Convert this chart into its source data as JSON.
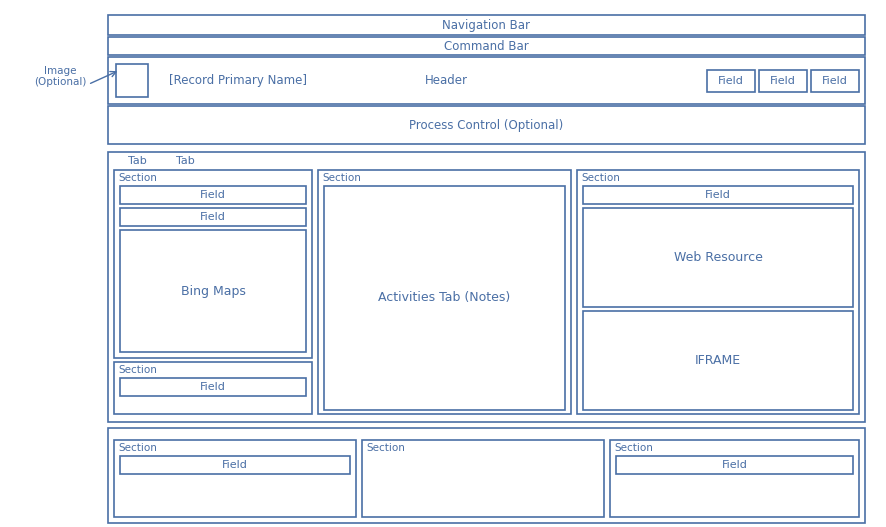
{
  "bg_color": "#ffffff",
  "bc": "#4a6fa5",
  "tc": "#4a6fa5",
  "figsize": [
    8.87,
    5.27
  ],
  "dpi": 100,
  "lw": 1.2,
  "nav_label": "Navigation Bar",
  "cmd_label": "Command Bar",
  "hdr_label": "Header",
  "rec_label": "[Record Primary Name]",
  "img_label": "Image\n(Optional)",
  "field_btns": [
    "Field",
    "Field",
    "Field"
  ],
  "pc_label": "Process Control (Optional)",
  "tab_labels": [
    "Tab",
    "Tab"
  ],
  "sec_label": "Section",
  "field_label": "Field",
  "bingmaps_label": "Bing Maps",
  "activities_label": "Activities Tab (Notes)",
  "webres_label": "Web Resource",
  "iframe_label": "IFRAME"
}
